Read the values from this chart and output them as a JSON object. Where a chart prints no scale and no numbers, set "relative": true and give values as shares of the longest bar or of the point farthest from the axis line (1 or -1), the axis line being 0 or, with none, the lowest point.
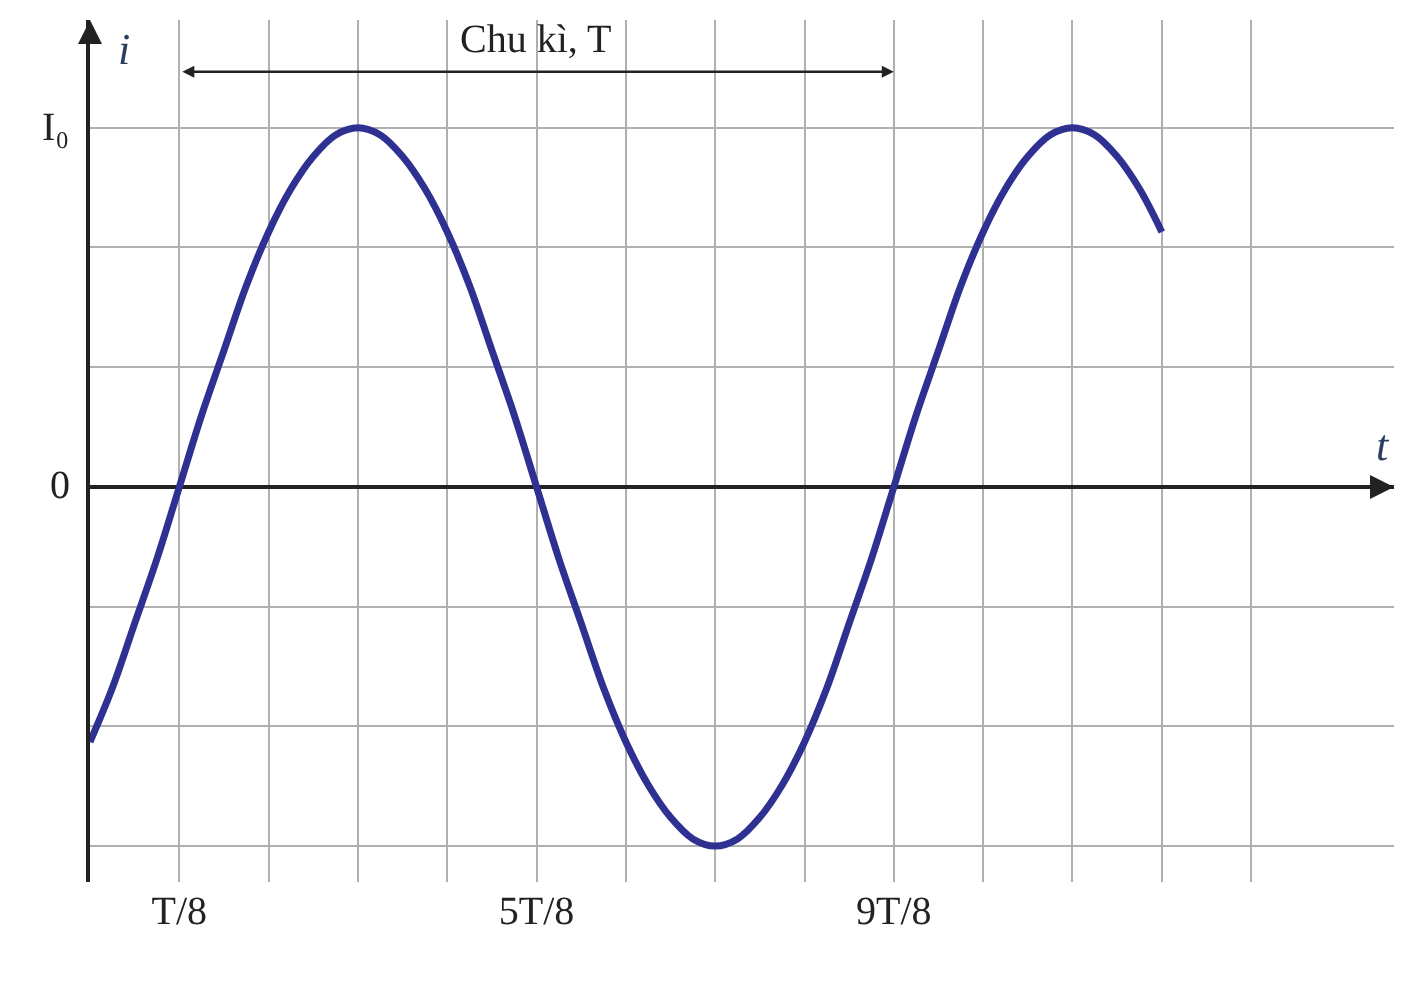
{
  "chart_data": {
    "type": "line",
    "relative": true,
    "xlabel": "t",
    "ylabel": "i",
    "categories": [
      null,
      null,
      null,
      null,
      "T/8",
      null,
      null,
      null,
      null,
      null,
      null,
      null,
      null,
      null,
      null,
      null,
      null,
      null,
      null,
      null,
      "5T/8",
      null,
      null,
      null,
      null,
      null,
      null,
      null,
      null,
      null,
      null,
      null,
      null,
      null,
      null,
      null,
      "9T/8",
      null,
      null,
      null,
      null,
      null,
      null,
      null,
      null,
      null,
      null,
      null,
      null
    ],
    "series": [
      {
        "color": "#2e3192",
        "values": [
          -0.71,
          -0.56,
          -0.38,
          -0.2,
          0,
          0.2,
          0.38,
          0.56,
          0.71,
          0.83,
          0.92,
          0.98,
          1,
          0.98,
          0.92,
          0.83,
          0.71,
          0.56,
          0.38,
          0.2,
          0,
          -0.2,
          -0.38,
          -0.56,
          -0.71,
          -0.83,
          -0.92,
          -0.98,
          -1,
          -0.98,
          -0.92,
          -0.83,
          -0.71,
          -0.56,
          -0.38,
          -0.2,
          0,
          0.2,
          0.38,
          0.56,
          0.71,
          0.83,
          0.92,
          0.98,
          1,
          0.98,
          0.92,
          0.83,
          0.71
        ]
      }
    ],
    "annotations": [
      "I₀",
      "0",
      "Chu kì, T"
    ],
    "grid": true,
    "legend": false,
    "marker": "none",
    "line_style": "solid"
  }
}
